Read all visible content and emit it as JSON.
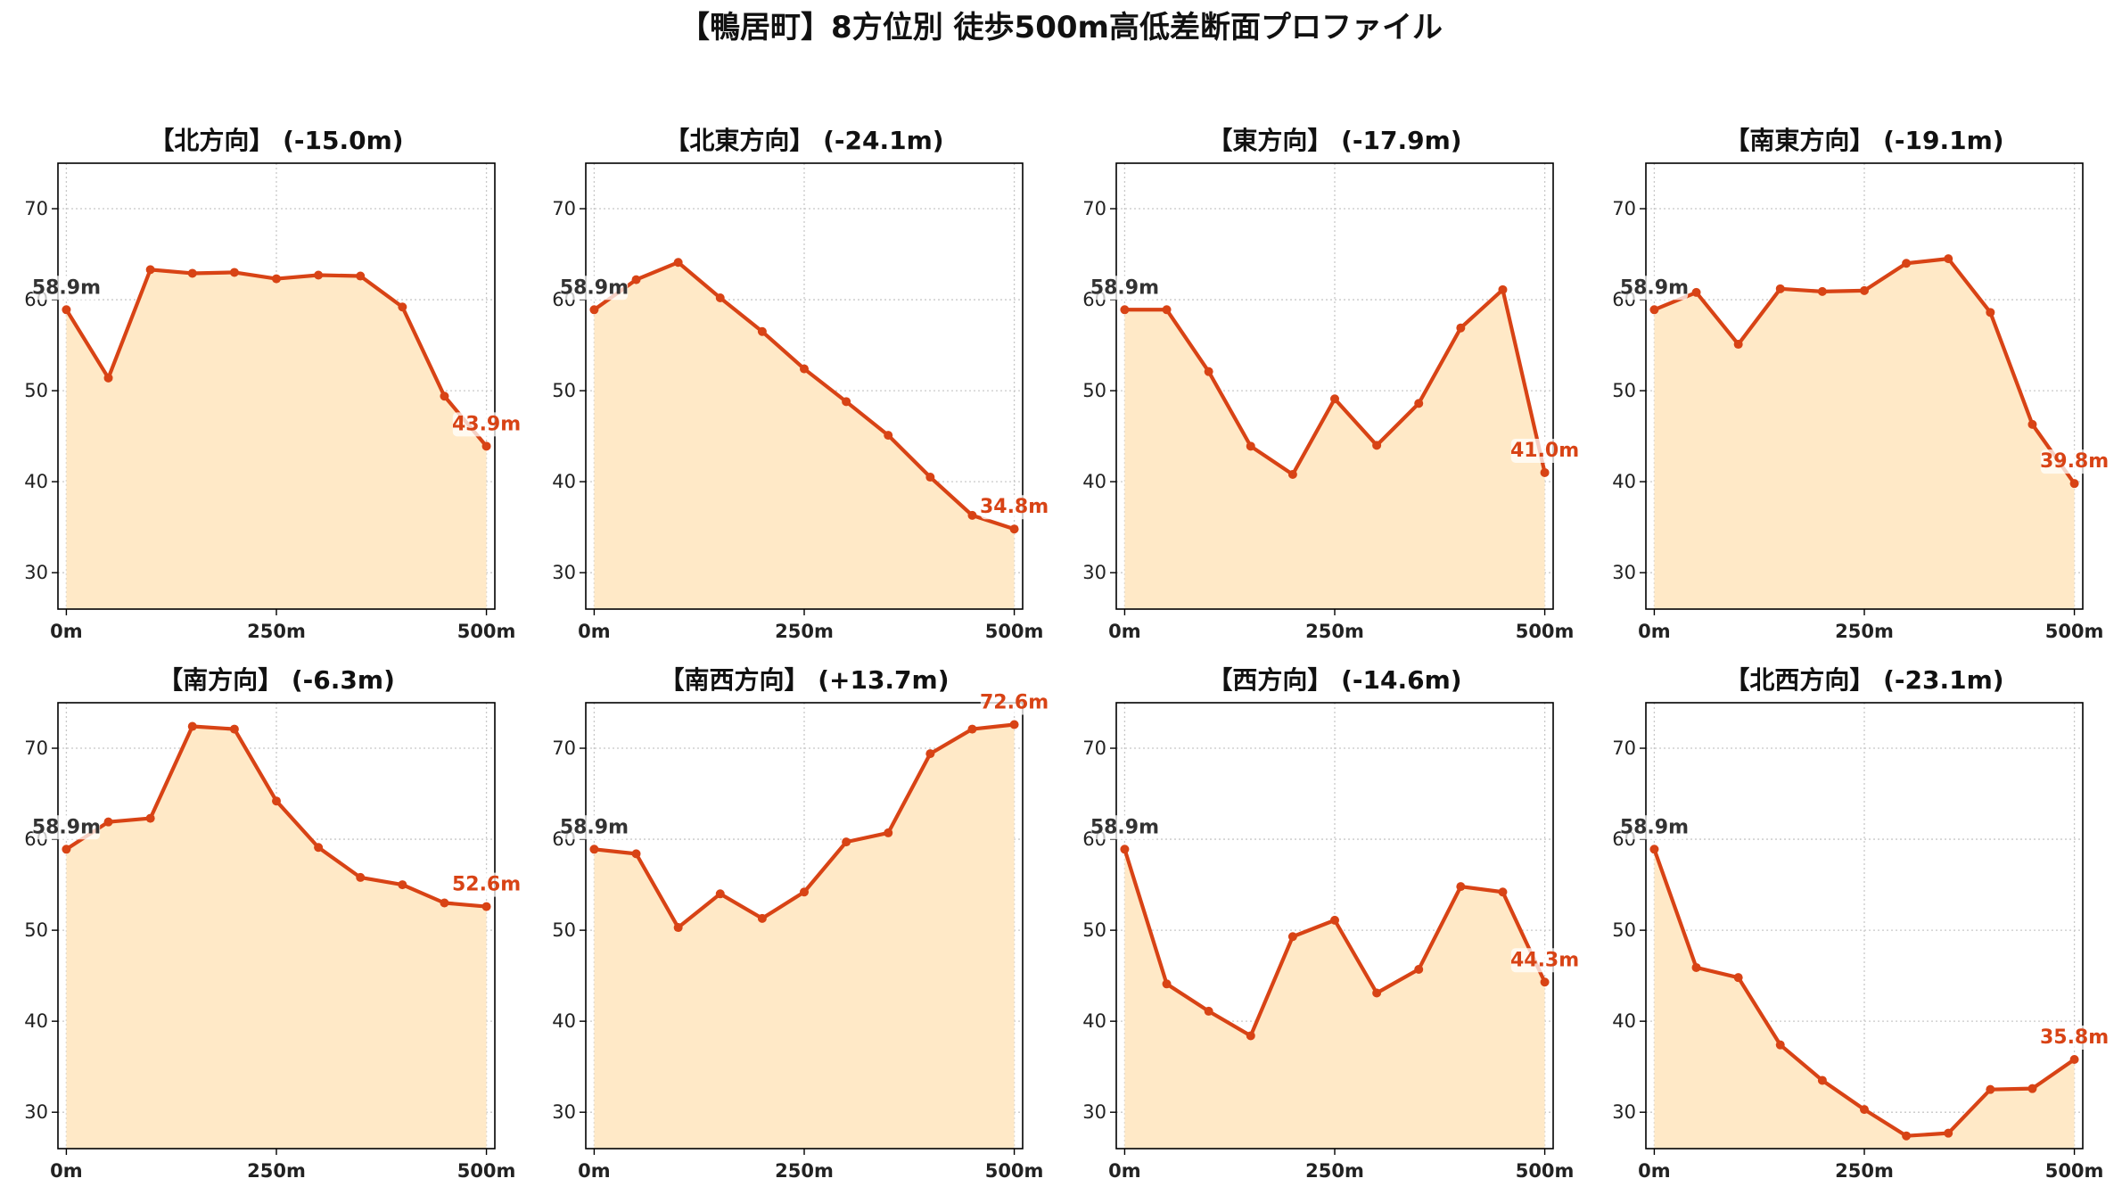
{
  "title": "【鴨居町】8方位別 徒歩500m高低差断面プロファイル",
  "colors": {
    "line": "#d84315",
    "fill": "#ffe9c7",
    "start_label": "#333333",
    "end_label": "#d84315",
    "grid": "#c8c8c8"
  },
  "chart_data": [
    {
      "type": "area",
      "title": "【北方向】 (-15.0m)",
      "x": [
        0,
        50,
        100,
        150,
        200,
        250,
        300,
        350,
        400,
        450,
        500
      ],
      "values": [
        58.9,
        51.4,
        63.3,
        62.9,
        63.0,
        62.3,
        62.7,
        62.6,
        59.2,
        49.4,
        43.9
      ],
      "start_label": "58.9m",
      "end_label": "43.9m",
      "xticks": [
        "0m",
        "250m",
        "500m"
      ],
      "yticks": [
        30,
        40,
        50,
        60,
        70
      ],
      "ylim": [
        26,
        75
      ],
      "xlim": [
        -10,
        510
      ],
      "grid": true
    },
    {
      "type": "area",
      "title": "【北東方向】 (-24.1m)",
      "x": [
        0,
        50,
        100,
        150,
        200,
        250,
        300,
        350,
        400,
        450,
        500
      ],
      "values": [
        58.9,
        62.2,
        64.1,
        60.2,
        56.5,
        52.4,
        48.8,
        45.1,
        40.5,
        36.3,
        34.8
      ],
      "start_label": "58.9m",
      "end_label": "34.8m",
      "xticks": [
        "0m",
        "250m",
        "500m"
      ],
      "yticks": [
        30,
        40,
        50,
        60,
        70
      ],
      "ylim": [
        26,
        75
      ],
      "xlim": [
        -10,
        510
      ],
      "grid": true
    },
    {
      "type": "area",
      "title": "【東方向】 (-17.9m)",
      "x": [
        0,
        50,
        100,
        150,
        200,
        250,
        300,
        350,
        400,
        450,
        500
      ],
      "values": [
        58.9,
        58.9,
        52.1,
        43.9,
        40.8,
        49.1,
        44.0,
        48.6,
        56.9,
        61.1,
        41.0
      ],
      "start_label": "58.9m",
      "end_label": "41.0m",
      "xticks": [
        "0m",
        "250m",
        "500m"
      ],
      "yticks": [
        30,
        40,
        50,
        60,
        70
      ],
      "ylim": [
        26,
        75
      ],
      "xlim": [
        -10,
        510
      ],
      "grid": true
    },
    {
      "type": "area",
      "title": "【南東方向】 (-19.1m)",
      "x": [
        0,
        50,
        100,
        150,
        200,
        250,
        300,
        350,
        400,
        450,
        500
      ],
      "values": [
        58.9,
        60.8,
        55.1,
        61.2,
        60.9,
        61.0,
        64.0,
        64.5,
        58.6,
        46.3,
        39.8
      ],
      "start_label": "58.9m",
      "end_label": "39.8m",
      "xticks": [
        "0m",
        "250m",
        "500m"
      ],
      "yticks": [
        30,
        40,
        50,
        60,
        70
      ],
      "ylim": [
        26,
        75
      ],
      "xlim": [
        -10,
        510
      ],
      "grid": true
    },
    {
      "type": "area",
      "title": "【南方向】 (-6.3m)",
      "x": [
        0,
        50,
        100,
        150,
        200,
        250,
        300,
        350,
        400,
        450,
        500
      ],
      "values": [
        58.9,
        61.9,
        62.3,
        72.4,
        72.1,
        64.2,
        59.1,
        55.8,
        55.0,
        53.0,
        52.6
      ],
      "start_label": "58.9m",
      "end_label": "52.6m",
      "xticks": [
        "0m",
        "250m",
        "500m"
      ],
      "yticks": [
        30,
        40,
        50,
        60,
        70
      ],
      "ylim": [
        26,
        75
      ],
      "xlim": [
        -10,
        510
      ],
      "grid": true
    },
    {
      "type": "area",
      "title": "【南西方向】 (+13.7m)",
      "x": [
        0,
        50,
        100,
        150,
        200,
        250,
        300,
        350,
        400,
        450,
        500
      ],
      "values": [
        58.9,
        58.4,
        50.3,
        54.0,
        51.3,
        54.2,
        59.7,
        60.7,
        69.4,
        72.1,
        72.6
      ],
      "start_label": "58.9m",
      "end_label": "72.6m",
      "xticks": [
        "0m",
        "250m",
        "500m"
      ],
      "yticks": [
        30,
        40,
        50,
        60,
        70
      ],
      "ylim": [
        26,
        75
      ],
      "xlim": [
        -10,
        510
      ],
      "grid": true
    },
    {
      "type": "area",
      "title": "【西方向】 (-14.6m)",
      "x": [
        0,
        50,
        100,
        150,
        200,
        250,
        300,
        350,
        400,
        450,
        500
      ],
      "values": [
        58.9,
        44.1,
        41.1,
        38.4,
        49.3,
        51.1,
        43.1,
        45.7,
        54.8,
        54.2,
        44.3
      ],
      "start_label": "58.9m",
      "end_label": "44.3m",
      "xticks": [
        "0m",
        "250m",
        "500m"
      ],
      "yticks": [
        30,
        40,
        50,
        60,
        70
      ],
      "ylim": [
        26,
        75
      ],
      "xlim": [
        -10,
        510
      ],
      "grid": true
    },
    {
      "type": "area",
      "title": "【北西方向】 (-23.1m)",
      "x": [
        0,
        50,
        100,
        150,
        200,
        250,
        300,
        350,
        400,
        450,
        500
      ],
      "values": [
        58.9,
        45.9,
        44.8,
        37.4,
        33.5,
        30.3,
        27.4,
        27.7,
        32.5,
        32.6,
        35.8
      ],
      "start_label": "58.9m",
      "end_label": "35.8m",
      "xticks": [
        "0m",
        "250m",
        "500m"
      ],
      "yticks": [
        30,
        40,
        50,
        60,
        70
      ],
      "ylim": [
        26,
        75
      ],
      "xlim": [
        -10,
        510
      ],
      "grid": true
    }
  ]
}
